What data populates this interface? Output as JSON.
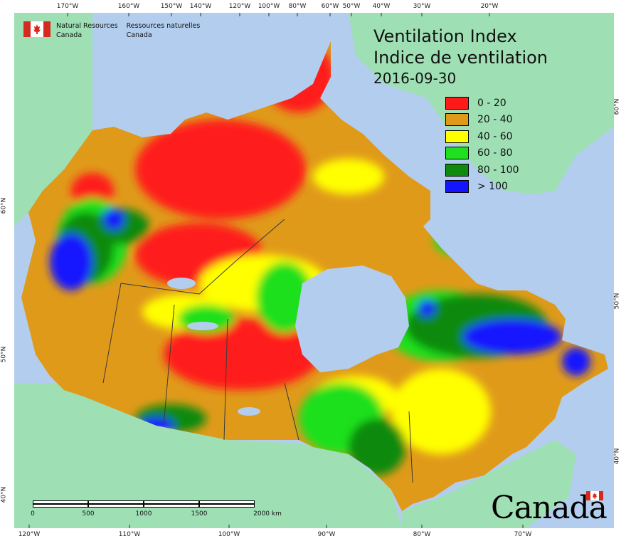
{
  "map": {
    "title_en": "Ventilation Index",
    "title_fr": "Indice de ventilation",
    "date": "2016-09-30",
    "legend": [
      {
        "label": "0 - 20",
        "color": "#ff1a1a"
      },
      {
        "label": "20 - 40",
        "color": "#e09a1a"
      },
      {
        "label": "40 - 60",
        "color": "#ffff00"
      },
      {
        "label": "60 - 80",
        "color": "#1ee01e"
      },
      {
        "label": "80 - 100",
        "color": "#0f8a0f"
      },
      {
        "label": "> 100",
        "color": "#1414ff"
      }
    ],
    "colors": {
      "ocean": "#b3cdee",
      "foreign_land": "#9ee0b4",
      "border": "#3a3a3a"
    }
  },
  "branding": {
    "nrcan_en_1": "Natural Resources",
    "nrcan_en_2": "Canada",
    "nrcan_fr_1": "Ressources naturelles",
    "nrcan_fr_2": "Canada",
    "wordmark": "Canada"
  },
  "graticule": {
    "top": [
      "170°W",
      "160°W",
      "150°W",
      "140°W",
      "120°W",
      "100°W",
      "80°W",
      "60°W",
      "50°W",
      "40°W",
      "30°W",
      "20°W"
    ],
    "bottom": [
      "120°W",
      "110°W",
      "100°W",
      "90°W",
      "80°W",
      "70°W"
    ],
    "left": [
      "60°N",
      "50°N",
      "40°N"
    ],
    "right": [
      "60°N",
      "50°N",
      "40°N"
    ]
  },
  "scalebar": {
    "labels": [
      "0",
      "500",
      "1000",
      "1500",
      "2000 km"
    ]
  }
}
